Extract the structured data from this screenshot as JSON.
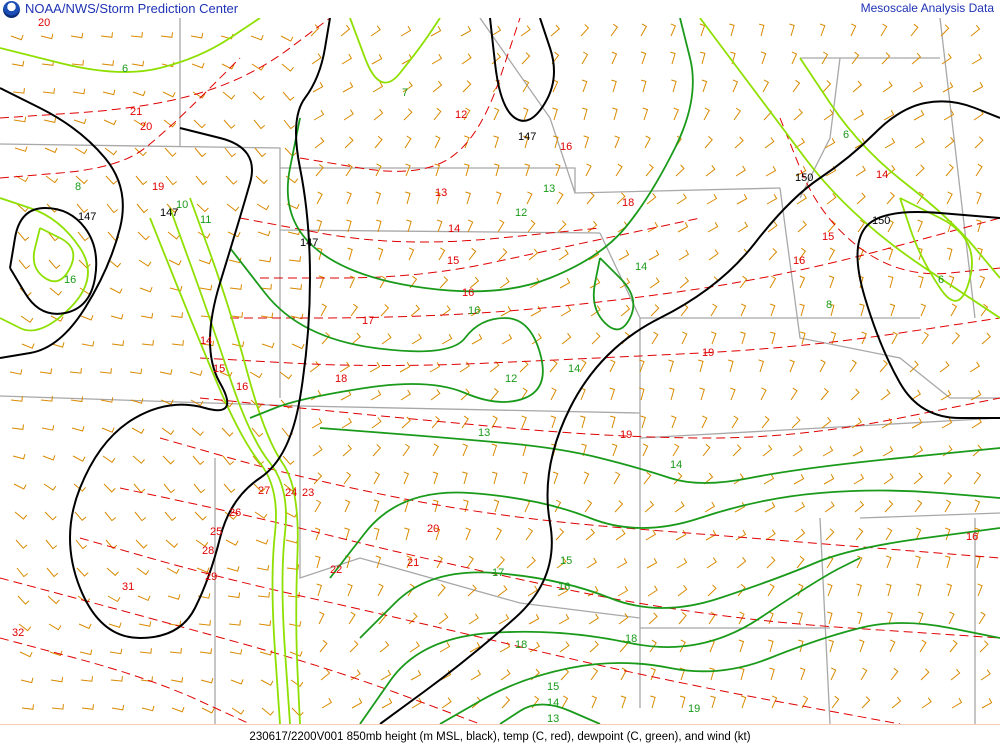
{
  "header": {
    "organization": "NOAA/NWS/Storm Prediction Center",
    "product": "Mesoscale Analysis Data",
    "logo": "noaa-logo"
  },
  "caption": "230617/2200V001 850mb height (m MSL, black), temp (C, red), dewpoint (C, green), and wind (kt)",
  "colors": {
    "height": "#000000",
    "temp": "#e00000",
    "dewpoint_moist": "#1a9a1a",
    "dewpoint_dry": "#8fe000",
    "wind": "#d98a00",
    "borders": "#a0a0a0",
    "title": "#1f33b5"
  },
  "height_labels": [
    "147",
    "147",
    "147",
    "147",
    "150",
    "150"
  ],
  "temp_labels": [
    "20",
    "21",
    "20",
    "19",
    "12",
    "13",
    "14",
    "15",
    "16",
    "17",
    "18",
    "18",
    "19",
    "19",
    "14",
    "15",
    "16",
    "16",
    "14",
    "15",
    "16",
    "20",
    "21",
    "22",
    "23",
    "24",
    "25",
    "26",
    "27",
    "28",
    "29",
    "31",
    "32",
    "16"
  ],
  "dewpoint_labels": [
    "6",
    "7",
    "8",
    "10",
    "11",
    "12",
    "13",
    "14",
    "14",
    "16",
    "12",
    "13",
    "14",
    "15",
    "16",
    "17",
    "18",
    "18",
    "19",
    "15",
    "14",
    "13",
    "8",
    "6",
    "6",
    "16"
  ]
}
